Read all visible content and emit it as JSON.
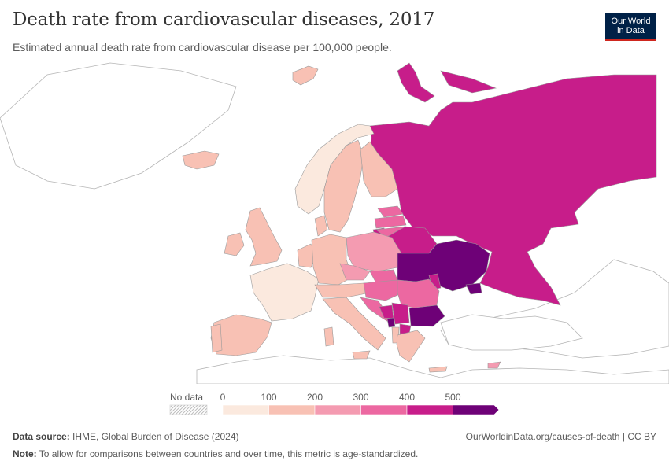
{
  "header": {
    "title": "Death rate from cardiovascular diseases, 2017",
    "subtitle": "Estimated annual death rate from cardiovascular disease per 100,000 people."
  },
  "logo": {
    "line1": "Our World",
    "line2": "in Data"
  },
  "legend": {
    "no_data_label": "No data",
    "ticks": [
      "0",
      "100",
      "200",
      "300",
      "400",
      "500"
    ],
    "bins": [
      {
        "from": 0,
        "to": 100,
        "color": "#fbe9de"
      },
      {
        "from": 100,
        "to": 200,
        "color": "#f8c1b4"
      },
      {
        "from": 200,
        "to": 300,
        "color": "#f49bb1"
      },
      {
        "from": 300,
        "to": 400,
        "color": "#ec68a1"
      },
      {
        "from": 400,
        "to": 500,
        "color": "#c71d8a"
      },
      {
        "from": 500,
        "to": null,
        "color": "#6e0177"
      }
    ]
  },
  "map_data": {
    "type": "choropleth",
    "year": 2017,
    "no_data_color": "#ffffff",
    "border_color": "#9a9a9a"
  },
  "footer": {
    "source_label": "Data source:",
    "source_text": "IHME, Global Burden of Disease (2024)",
    "url": "OurWorldinData.org/causes-of-death | CC BY",
    "note_label": "Note:",
    "note_text": "To allow for comparisons between countries and over time, this metric is age-standardized."
  }
}
